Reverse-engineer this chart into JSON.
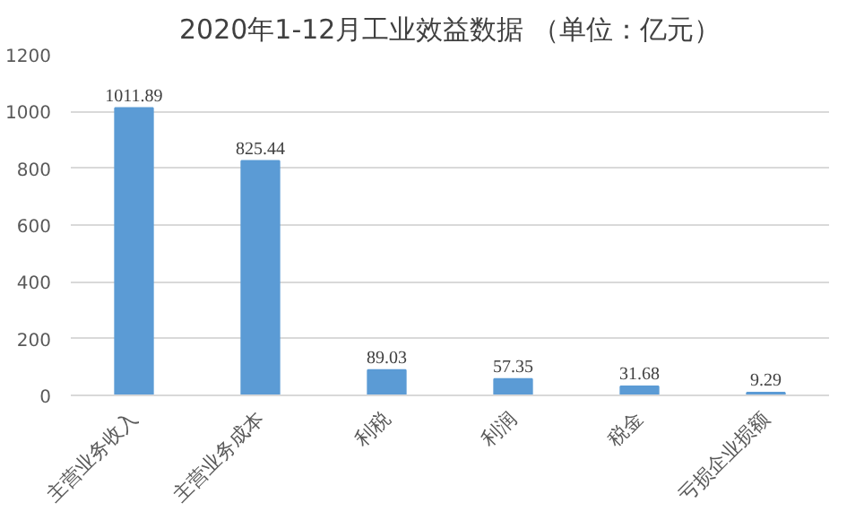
{
  "chart_data": {
    "type": "bar",
    "title": "2020年1-12月工业效益数据 （单位：亿元）",
    "categories": [
      "主营业务收入",
      "主营业务成本",
      "利税",
      "利润",
      "税金",
      "亏损企业损额"
    ],
    "values": [
      1011.89,
      825.44,
      89.03,
      57.35,
      31.68,
      9.29
    ],
    "color": "#5b9bd5",
    "ylim": [
      0,
      1200
    ],
    "yticks": [
      0,
      200,
      400,
      600,
      800,
      1000,
      1200
    ],
    "grid": "y",
    "data_labels": true
  }
}
